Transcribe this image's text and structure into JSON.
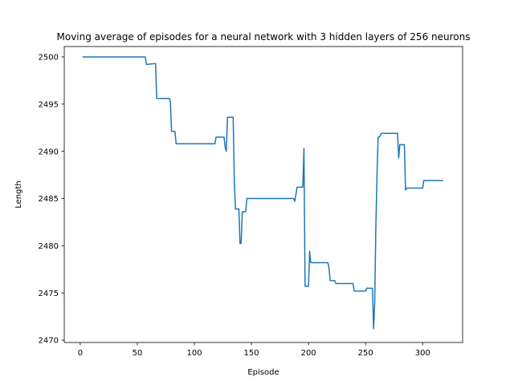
{
  "chart_data": {
    "type": "line",
    "title": "Moving average of episodes for a neural network with 3 hidden layers of 256 neurons",
    "xlabel": "Episode",
    "ylabel": "Length",
    "xlim": [
      -14,
      335
    ],
    "ylim": [
      2469.75,
      2501.1
    ],
    "xticks": [
      0,
      50,
      100,
      150,
      200,
      250,
      300
    ],
    "yticks": [
      2470,
      2475,
      2480,
      2485,
      2490,
      2495,
      2500
    ],
    "grid": false,
    "series": [
      {
        "name": "moving average",
        "color": "#1f77b4",
        "points": [
          [
            2,
            2500.0
          ],
          [
            57,
            2500.0
          ],
          [
            58,
            2499.2
          ],
          [
            66,
            2499.3
          ],
          [
            67,
            2495.6
          ],
          [
            78,
            2495.6
          ],
          [
            79,
            2495.3
          ],
          [
            80,
            2492.1
          ],
          [
            83,
            2492.1
          ],
          [
            84,
            2490.8
          ],
          [
            118,
            2490.8
          ],
          [
            119,
            2491.5
          ],
          [
            126,
            2491.5
          ],
          [
            127,
            2490.4
          ],
          [
            128,
            2490.0
          ],
          [
            129,
            2493.6
          ],
          [
            134,
            2493.6
          ],
          [
            135,
            2486.8
          ],
          [
            136,
            2483.9
          ],
          [
            139,
            2483.9
          ],
          [
            140,
            2480.2
          ],
          [
            141,
            2480.3
          ],
          [
            142,
            2483.6
          ],
          [
            145,
            2483.6
          ],
          [
            146,
            2485.0
          ],
          [
            187,
            2485.0
          ],
          [
            188,
            2484.7
          ],
          [
            190,
            2486.2
          ],
          [
            195,
            2486.2
          ],
          [
            196,
            2490.3
          ],
          [
            197,
            2475.7
          ],
          [
            200,
            2475.7
          ],
          [
            201,
            2479.4
          ],
          [
            202,
            2478.2
          ],
          [
            217,
            2478.2
          ],
          [
            218,
            2477.6
          ],
          [
            219,
            2476.3
          ],
          [
            223,
            2476.3
          ],
          [
            224,
            2476.0
          ],
          [
            239,
            2476.0
          ],
          [
            240,
            2475.2
          ],
          [
            250,
            2475.2
          ],
          [
            251,
            2475.5
          ],
          [
            256,
            2475.5
          ],
          [
            257,
            2471.2
          ],
          [
            258,
            2474.0
          ],
          [
            259,
            2482.0
          ],
          [
            260,
            2487.5
          ],
          [
            261,
            2491.5
          ],
          [
            262,
            2491.5
          ],
          [
            264,
            2491.9
          ],
          [
            278,
            2491.9
          ],
          [
            279,
            2489.3
          ],
          [
            280,
            2490.7
          ],
          [
            284,
            2490.7
          ],
          [
            285,
            2485.9
          ],
          [
            286,
            2486.1
          ],
          [
            300,
            2486.1
          ],
          [
            301,
            2486.9
          ],
          [
            318,
            2486.9
          ]
        ]
      }
    ]
  }
}
